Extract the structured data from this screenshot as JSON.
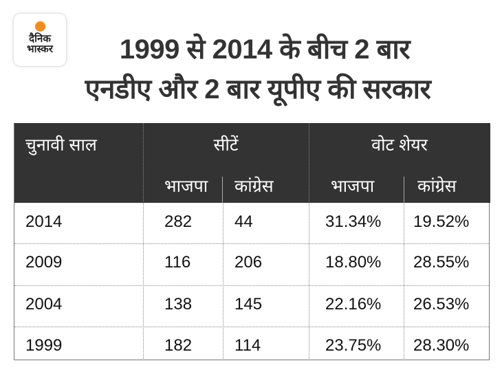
{
  "logo": {
    "line1": "दैनिक",
    "line2": "भास्कर",
    "accent": "#f28c1d"
  },
  "title": {
    "line1": "1999 से 2014 के बीच 2 बार",
    "line2": "एनडीए और 2 बार यूपीए की सरकार"
  },
  "chart_data": {
    "type": "table",
    "title": "1999 से 2014 के बीच 2 बार एनडीए और 2 बार यूपीए की सरकार",
    "header": {
      "year": "चुनावी साल",
      "seats": "सीटें",
      "vote_share": "वोट शेयर",
      "bjp": "भाजपा",
      "congress": "कांग्रेस"
    },
    "rows": [
      {
        "year": "2014",
        "seats_bjp": "282",
        "seats_congress": "44",
        "vote_bjp": "31.34%",
        "vote_congress": "19.52%"
      },
      {
        "year": "2009",
        "seats_bjp": "116",
        "seats_congress": "206",
        "vote_bjp": "18.80%",
        "vote_congress": "28.55%"
      },
      {
        "year": "2004",
        "seats_bjp": "138",
        "seats_congress": "145",
        "vote_bjp": "22.16%",
        "vote_congress": "26.53%"
      },
      {
        "year": "1999",
        "seats_bjp": "182",
        "seats_congress": "114",
        "vote_bjp": "23.75%",
        "vote_congress": "28.30%"
      }
    ]
  }
}
